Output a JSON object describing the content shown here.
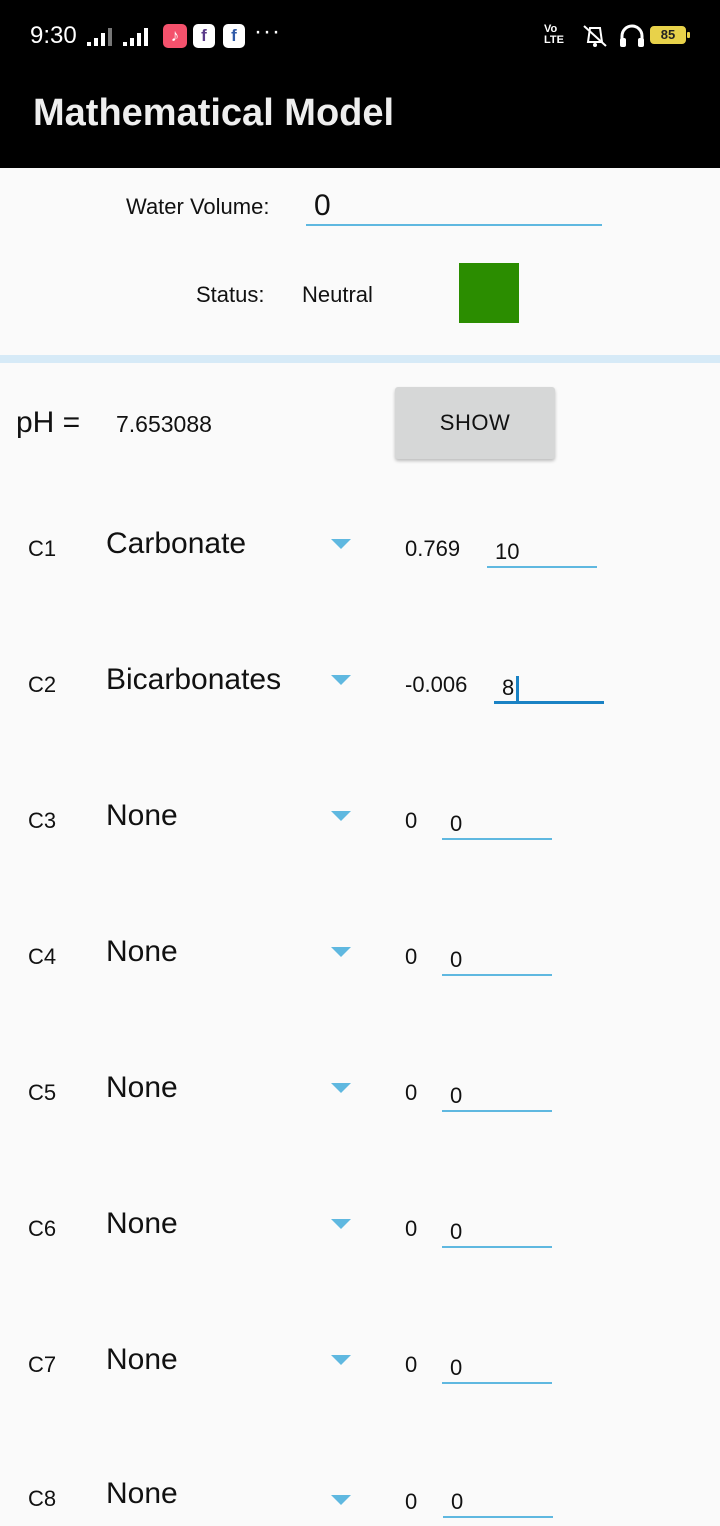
{
  "status_bar": {
    "time": "9:30",
    "battery": "85",
    "volte": "Vo LTE"
  },
  "app_bar": {
    "title": "Mathematical Model"
  },
  "water_volume": {
    "label": "Water Volume:",
    "value": "0"
  },
  "status": {
    "label": "Status:",
    "value": "Neutral",
    "color": "#2b8d00"
  },
  "ph": {
    "label": "pH =",
    "value": "7.653088"
  },
  "show_button": {
    "label": "SHOW"
  },
  "rows": [
    {
      "label": "C1",
      "selected": "Carbonate",
      "coef": "0.769",
      "input": "10"
    },
    {
      "label": "C2",
      "selected": "Bicarbonates",
      "coef": "-0.006",
      "input": "8"
    },
    {
      "label": "C3",
      "selected": "None",
      "coef": "0",
      "input": "0"
    },
    {
      "label": "C4",
      "selected": "None",
      "coef": "0",
      "input": "0"
    },
    {
      "label": "C5",
      "selected": "None",
      "coef": "0",
      "input": "0"
    },
    {
      "label": "C6",
      "selected": "None",
      "coef": "0",
      "input": "0"
    },
    {
      "label": "C7",
      "selected": "None",
      "coef": "0",
      "input": "0"
    },
    {
      "label": "C8",
      "selected": "None",
      "coef": "0",
      "input": "0"
    }
  ]
}
